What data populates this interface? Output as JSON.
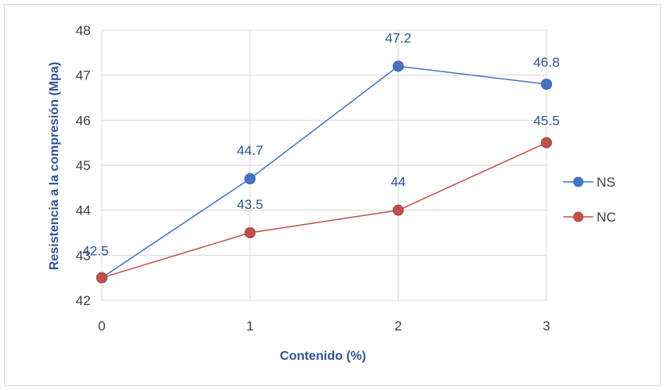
{
  "chart_data": {
    "type": "line",
    "title": "",
    "xlabel": "Contenido (%)",
    "ylabel": "Resistencia a la compresión (Mpa)",
    "x": [
      0,
      1,
      2,
      3
    ],
    "x_tick_labels": [
      "0",
      "1",
      "2",
      "3"
    ],
    "ylim": [
      42,
      48
    ],
    "y_tick_labels": [
      "42",
      "43",
      "44",
      "45",
      "46",
      "47",
      "48"
    ],
    "grid": true,
    "legend_position": "right",
    "series": [
      {
        "name": "NS",
        "color": "#4472c4",
        "values": [
          42.5,
          44.7,
          47.2,
          46.8
        ],
        "data_labels": [
          "42.5",
          "44.7",
          "47.2",
          "46.8"
        ]
      },
      {
        "name": "NC",
        "color": "#c0504d",
        "values": [
          42.5,
          43.5,
          44,
          45.5
        ],
        "data_labels": [
          "",
          "43.5",
          "44",
          "45.5"
        ]
      }
    ]
  }
}
